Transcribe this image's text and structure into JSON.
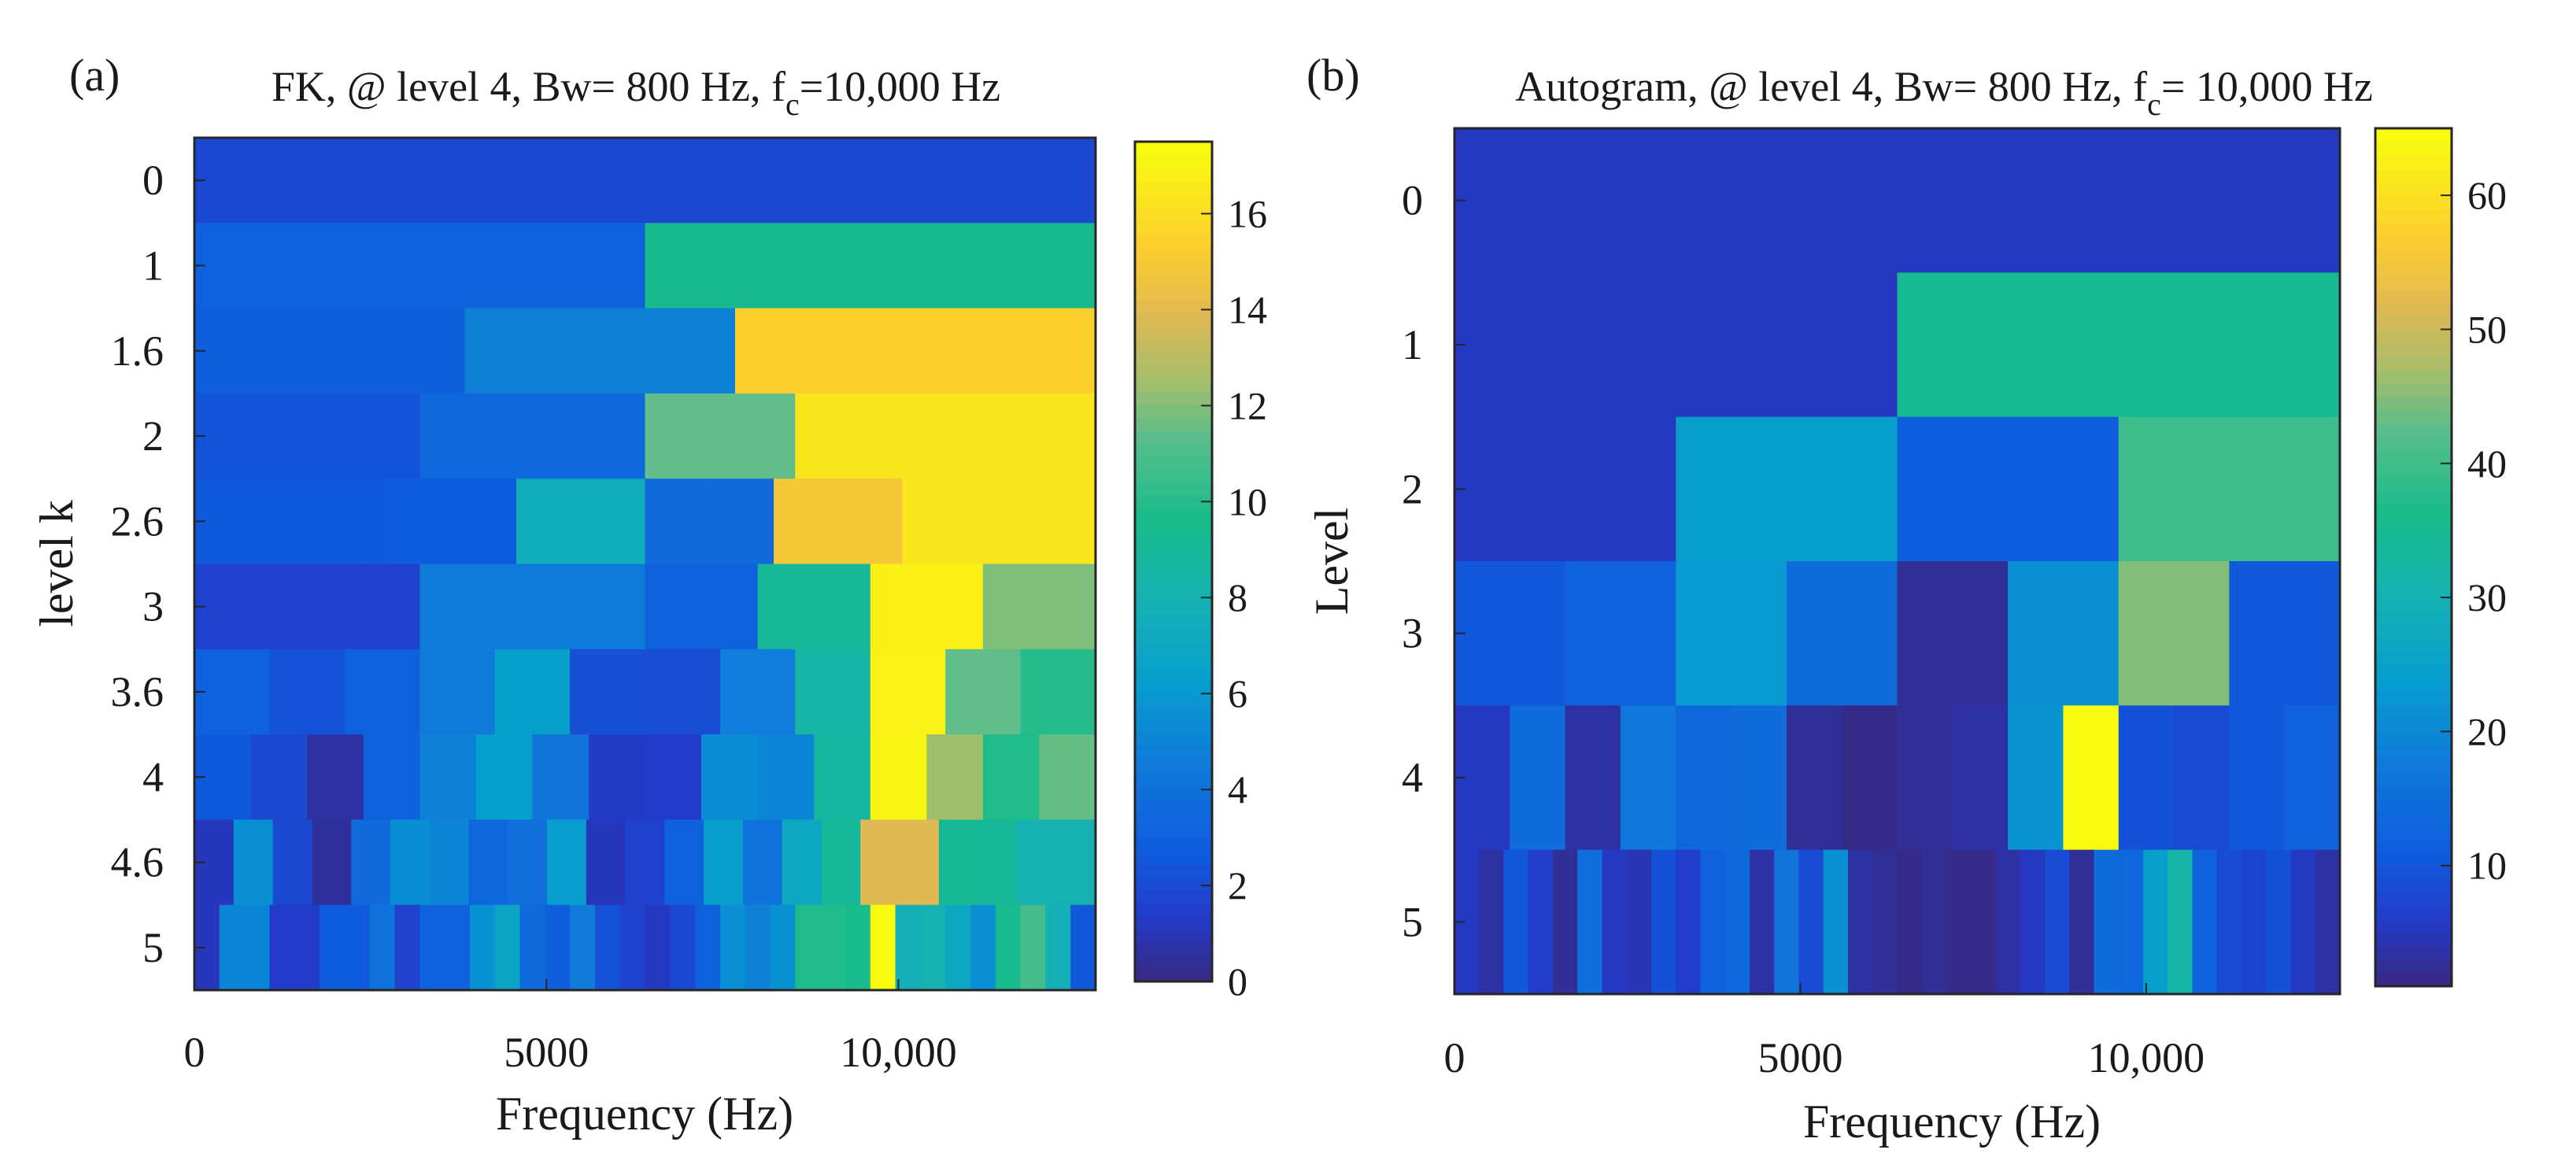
{
  "chart_data": [
    {
      "type": "heatmap",
      "panel": "(a)",
      "title_main": "FK, @ level 4, Bw= 800 Hz, f",
      "title_sub": "c",
      "title_tail": "=10,000 Hz",
      "xlabel": "Frequency (Hz)",
      "ylabel": "level k",
      "x_range": [
        0,
        12800
      ],
      "x_ticks": [
        0,
        5000,
        10000
      ],
      "x_tick_labels": [
        "0",
        "5000",
        "10,000"
      ],
      "y_labels": [
        "0",
        "1",
        "1.6",
        "2",
        "2.6",
        "3",
        "3.6",
        "4",
        "4.6",
        "5"
      ],
      "colorbar": {
        "min": 0,
        "max": 17.5,
        "ticks": [
          0,
          2,
          4,
          6,
          8,
          10,
          12,
          14,
          16
        ],
        "tick_labels": [
          "0",
          "2",
          "4",
          "6",
          "8",
          "10",
          "12",
          "14",
          "16"
        ]
      },
      "rows": [
        [
          1.8
        ],
        [
          3,
          3,
          9.5,
          9.5
        ],
        [
          2.8,
          2.8,
          2.8,
          4.8,
          4.8,
          4.8,
          15.5,
          15.5,
          15.5,
          15.5
        ],
        [
          2.3,
          2.3,
          2.3,
          3.3,
          3.3,
          3.3,
          11.5,
          11.5,
          16.5,
          16.5,
          16.5,
          16.5
        ],
        [
          2.5,
          2.5,
          2.5,
          2.6,
          2.6,
          7.5,
          7.5,
          3.5,
          3.5,
          15,
          15,
          16.5,
          16.5,
          16.5
        ],
        [
          1.5,
          1.5,
          1.5,
          1.5,
          4.5,
          4.5,
          4.5,
          4.5,
          3,
          3,
          9,
          9,
          17,
          17,
          12,
          12
        ],
        [
          3,
          2.2,
          2.9,
          4.5,
          6.4,
          2.1,
          2,
          4.6,
          8.5,
          17.1,
          11.5,
          10
        ],
        [
          2.5,
          1.8,
          0.5,
          3,
          4.8,
          6.4,
          4.1,
          1.2,
          1.3,
          5.4,
          5,
          8.8,
          17.2,
          12.5,
          9.8,
          11.6
        ],
        [
          1,
          5.5,
          1.8,
          0.4,
          3.5,
          5.4,
          5,
          3.3,
          3.8,
          6.2,
          1,
          1.5,
          3,
          6.4,
          4,
          7,
          9,
          14,
          14,
          9.2,
          9,
          8,
          8
        ],
        [
          1,
          5,
          5,
          1.3,
          1.3,
          2.6,
          2.6,
          4,
          1.5,
          3,
          3,
          5.6,
          6.8,
          3.5,
          2.8,
          4.4,
          2.2,
          1.6,
          1.1,
          1.8,
          3,
          5.5,
          4.8,
          5.6,
          9.8,
          9.9,
          9.6,
          18,
          7.7,
          8,
          7,
          5.5,
          9.4,
          10.8,
          7.8,
          2.5
        ]
      ]
    },
    {
      "type": "heatmap",
      "panel": "(b)",
      "title_main": "Autogram, @ level 4, Bw= 800 Hz, f",
      "title_sub": "c",
      "title_tail": "= 10,000 Hz",
      "xlabel": "Frequency (Hz)",
      "ylabel": "Level",
      "x_range": [
        0,
        12800
      ],
      "x_ticks": [
        0,
        5000,
        10000
      ],
      "x_tick_labels": [
        "0",
        "5000",
        "10,000"
      ],
      "y_labels": [
        "0",
        "1",
        "2",
        "3",
        "4",
        "5"
      ],
      "colorbar": {
        "min": 1,
        "max": 65,
        "ticks": [
          10,
          20,
          30,
          40,
          50,
          60
        ],
        "tick_labels": [
          "10",
          "20",
          "30",
          "40",
          "50",
          "60"
        ]
      },
      "rows": [
        [
          5
        ],
        [
          5,
          35
        ],
        [
          5,
          24,
          11,
          40
        ],
        [
          10,
          12,
          23,
          14,
          2,
          21,
          45,
          10
        ],
        [
          5,
          14,
          3,
          17,
          13,
          14,
          2,
          1,
          2,
          3,
          22,
          65,
          9,
          8,
          10,
          12
        ],
        [
          5,
          3,
          10,
          6,
          2,
          15,
          5,
          4,
          9,
          6,
          12,
          13,
          3,
          16,
          8,
          21,
          3,
          2,
          1,
          2,
          1,
          1,
          3,
          5,
          8,
          2,
          14,
          13,
          24,
          32,
          12,
          8,
          7,
          9,
          5,
          3
        ]
      ]
    }
  ]
}
